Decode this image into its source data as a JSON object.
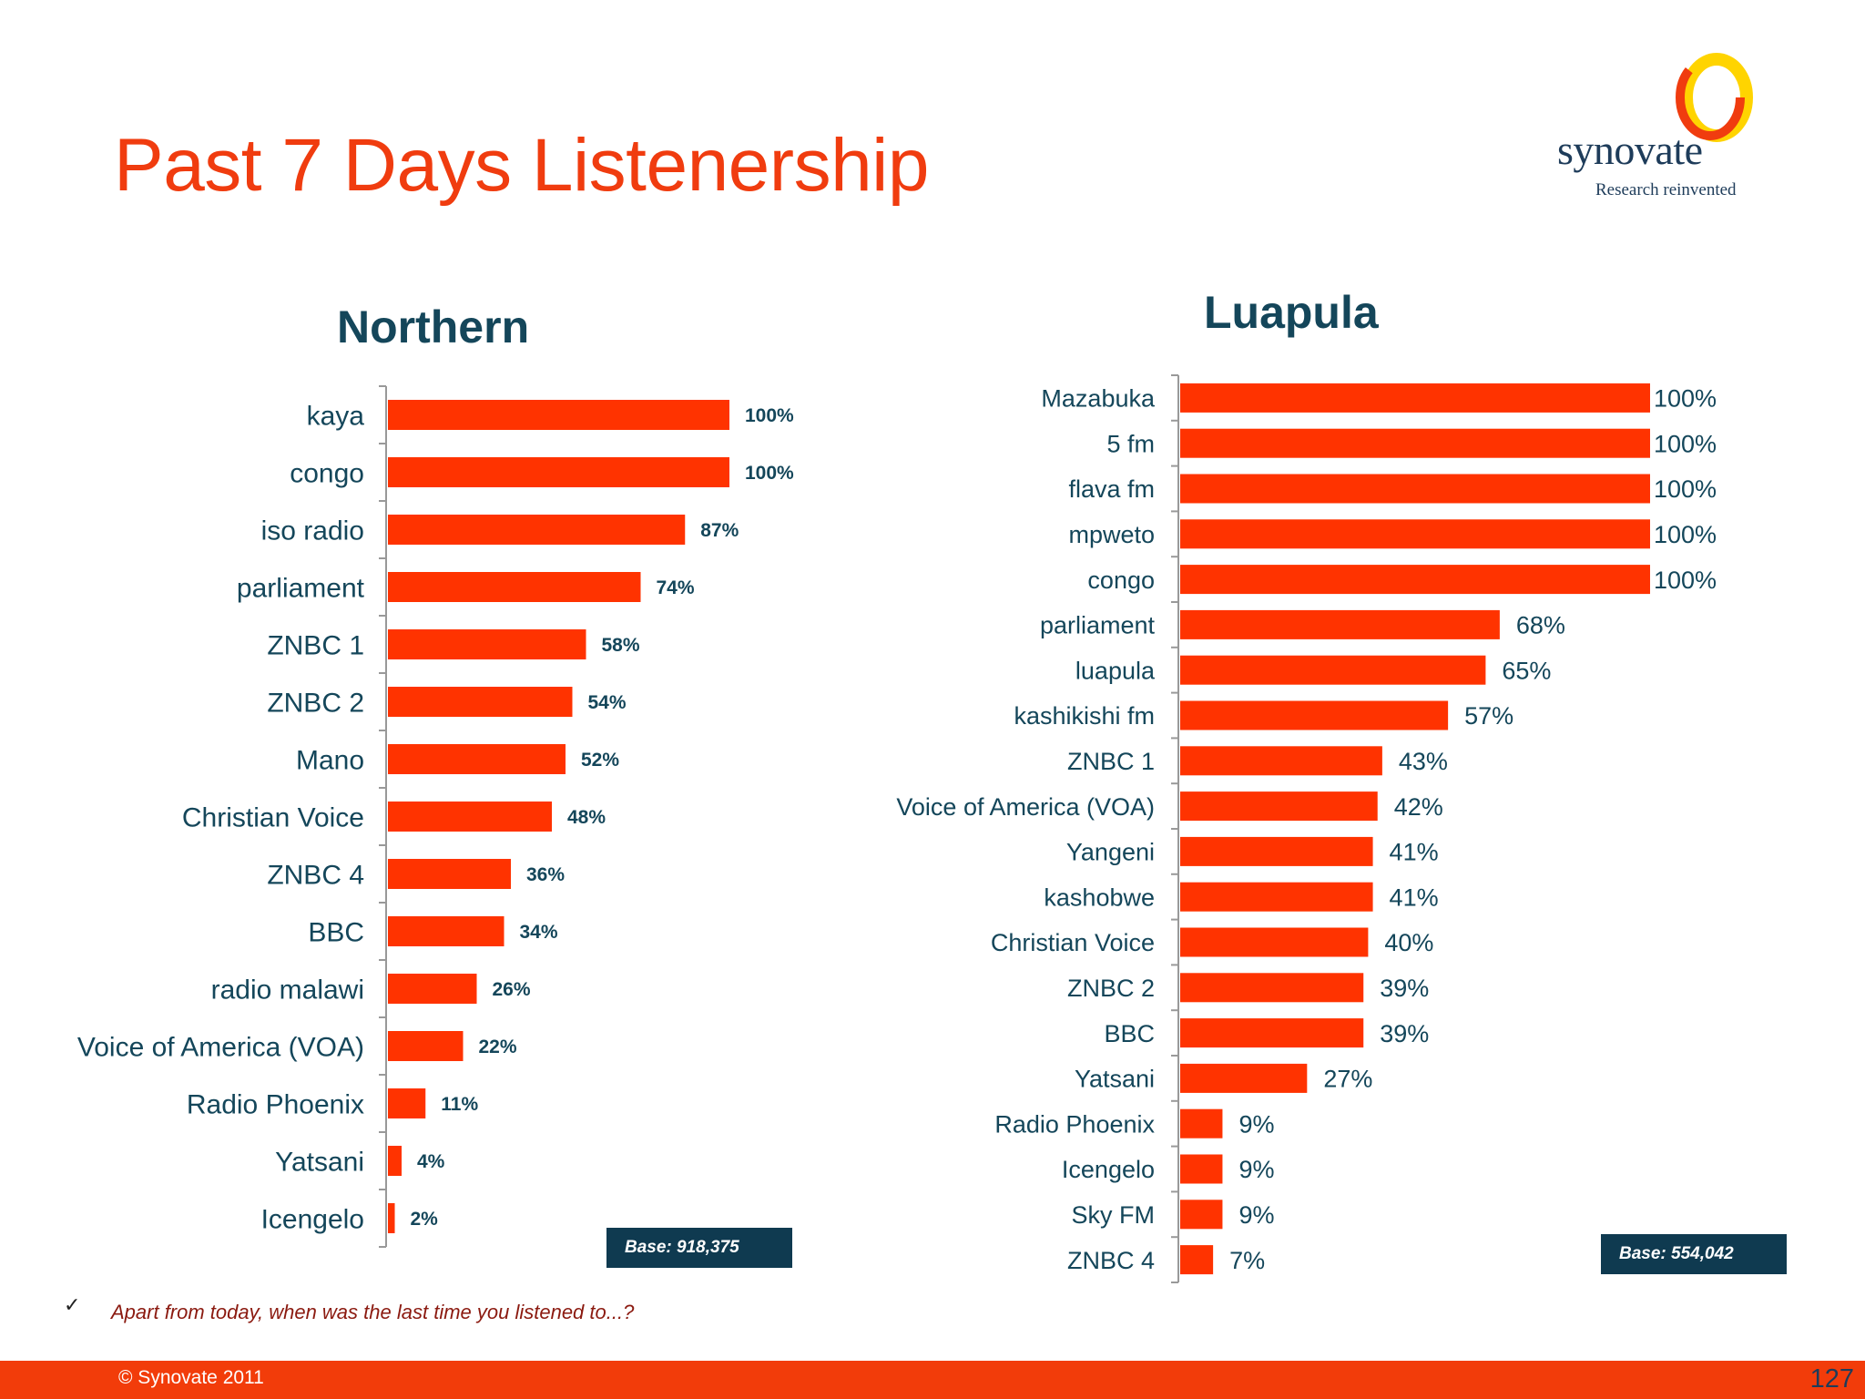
{
  "page": {
    "title": "Past 7 Days Listenership",
    "logo_word": "synovate",
    "logo_tagline": "Research reinvented",
    "question": "Apart from today, when was the last time you listened to...?",
    "check_mark": "✓",
    "copyright": "© Synovate 2011",
    "page_number": "127"
  },
  "colors": {
    "bar": "#ff3300",
    "title": "#f03c0f",
    "navy": "#14465a"
  },
  "chart_data": [
    {
      "type": "bar",
      "orientation": "horizontal",
      "title": "Northern",
      "base_label": "Base: 918,375",
      "xlim": [
        0,
        100
      ],
      "categories": [
        "kaya",
        "congo",
        "iso radio",
        "parliament",
        "ZNBC 1",
        "ZNBC 2",
        "Mano",
        "Christian Voice",
        "ZNBC 4",
        "BBC",
        "radio malawi",
        "Voice of America (VOA)",
        "Radio Phoenix",
        "Yatsani",
        "Icengelo"
      ],
      "values": [
        100,
        100,
        87,
        74,
        58,
        54,
        52,
        48,
        36,
        34,
        26,
        22,
        11,
        4,
        2
      ],
      "value_labels": [
        "100%",
        "100%",
        "87%",
        "74%",
        "58%",
        "54%",
        "52%",
        "48%",
        "36%",
        "34%",
        "26%",
        "22%",
        "11%",
        "4%",
        "2%"
      ]
    },
    {
      "type": "bar",
      "orientation": "horizontal",
      "title": "Luapula",
      "base_label": "Base: 554,042",
      "xlim": [
        0,
        100
      ],
      "categories": [
        "Mazabuka",
        "5 fm",
        "flava fm",
        "mpweto",
        "congo",
        "parliament",
        "luapula",
        "kashikishi fm",
        "ZNBC 1",
        "Voice of America (VOA)",
        "Yangeni",
        "kashobwe",
        "Christian Voice",
        "ZNBC 2",
        "BBC",
        "Yatsani",
        "Radio Phoenix",
        "Icengelo",
        "Sky FM",
        "ZNBC 4"
      ],
      "values": [
        100,
        100,
        100,
        100,
        100,
        68,
        65,
        57,
        43,
        42,
        41,
        41,
        40,
        39,
        39,
        27,
        9,
        9,
        9,
        7
      ],
      "value_labels": [
        "100%",
        "100%",
        "100%",
        "100%",
        "100%",
        "68%",
        "65%",
        "57%",
        "43%",
        "42%",
        "41%",
        "41%",
        "40%",
        "39%",
        "39%",
        "27%",
        "9%",
        "9%",
        "9%",
        "7%"
      ]
    }
  ]
}
